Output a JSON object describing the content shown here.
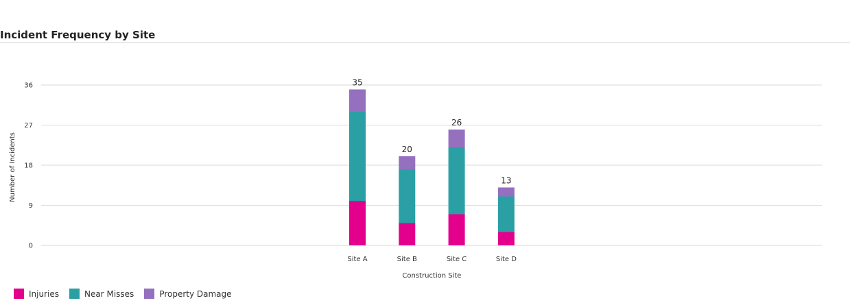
{
  "header": {
    "title": "Incident Frequency by Site"
  },
  "chart_data": {
    "type": "bar",
    "stacked": true,
    "categories": [
      "Site A",
      "Site B",
      "Site C",
      "Site D"
    ],
    "series": [
      {
        "name": "Injuries",
        "color": "#e3008c",
        "values": [
          10,
          5,
          7,
          3
        ]
      },
      {
        "name": "Near Misses",
        "color": "#2aa0a4",
        "values": [
          20,
          12,
          15,
          8
        ]
      },
      {
        "name": "Property Damage",
        "color": "#9470bf",
        "values": [
          5,
          3,
          4,
          2
        ]
      }
    ],
    "totals": [
      35,
      20,
      26,
      13
    ],
    "xlabel": "Construction Site",
    "ylabel": "Number of Incidents",
    "ylim": [
      0,
      36
    ],
    "yticks": [
      0,
      9,
      18,
      27,
      36
    ],
    "grid": true,
    "legend_position": "bottom-left"
  }
}
